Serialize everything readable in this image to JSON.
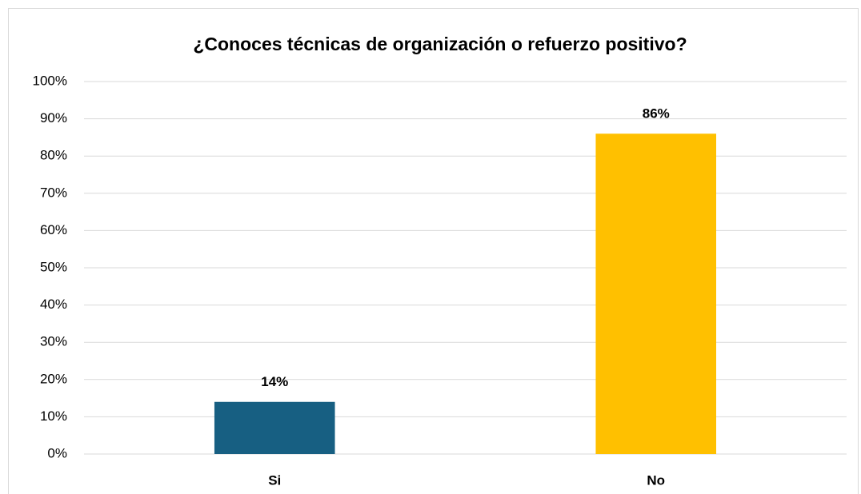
{
  "chart_data": {
    "type": "bar",
    "title": "¿Conoces técnicas de organización o refuerzo positivo?",
    "categories": [
      "Si",
      "No"
    ],
    "values": [
      14,
      86
    ],
    "value_labels": [
      "14%",
      "86%"
    ],
    "colors": [
      "#175f82",
      "#ffc000"
    ],
    "ylim": [
      0,
      100
    ],
    "yticks": [
      {
        "value": 0,
        "label": "0%"
      },
      {
        "value": 10,
        "label": "10%"
      },
      {
        "value": 20,
        "label": "20%"
      },
      {
        "value": 30,
        "label": "30%"
      },
      {
        "value": 40,
        "label": "40%"
      },
      {
        "value": 50,
        "label": "50%"
      },
      {
        "value": 60,
        "label": "60%"
      },
      {
        "value": 70,
        "label": "70%"
      },
      {
        "value": 80,
        "label": "80%"
      },
      {
        "value": 90,
        "label": "90%"
      },
      {
        "value": 100,
        "label": "100%"
      }
    ],
    "grid": true
  }
}
